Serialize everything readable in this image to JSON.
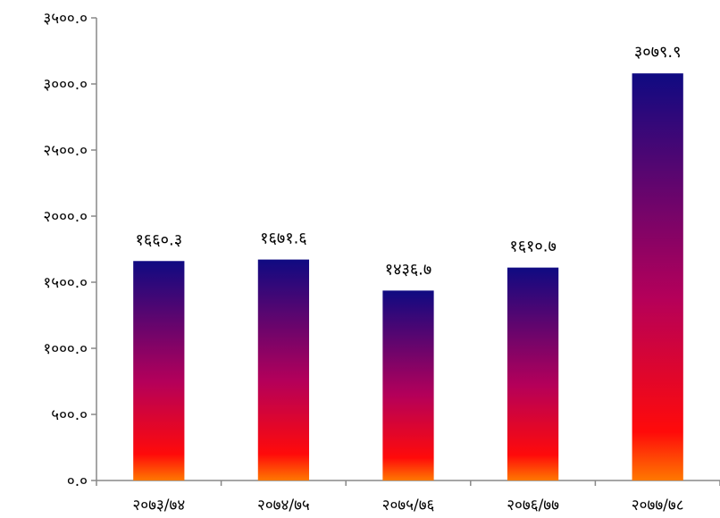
{
  "chart_data": {
    "type": "bar",
    "title": "",
    "xlabel": "",
    "ylabel": "",
    "categories": [
      "२०७३/७४",
      "२०७४/७५",
      "२०७५/७६",
      "२०७६/७७",
      "२०७७/७८"
    ],
    "values": [
      1660.3,
      1671.6,
      1436.7,
      1610.7,
      3079.9
    ],
    "value_labels": [
      "१६६०.३",
      "१६७१.६",
      "१४३६.७",
      "१६१०.७",
      "३०७९.९"
    ],
    "ylim": [
      0,
      3500
    ],
    "yticks": [
      0,
      500,
      1000,
      1500,
      2000,
      2500,
      3000,
      3500
    ],
    "ytick_labels": [
      "०.०",
      "५००.०",
      "१०००.०",
      "१५००.०",
      "२०००.०",
      "२५००.०",
      "३०००.०",
      "३५००.०"
    ],
    "grid": false,
    "legend": "none",
    "colors": {
      "bar_top": "#0f0a82",
      "bar_mid": "#b4005a",
      "bar_low": "#ff0a0a",
      "bar_bottom": "#ff7800",
      "axis": "#888888"
    }
  }
}
